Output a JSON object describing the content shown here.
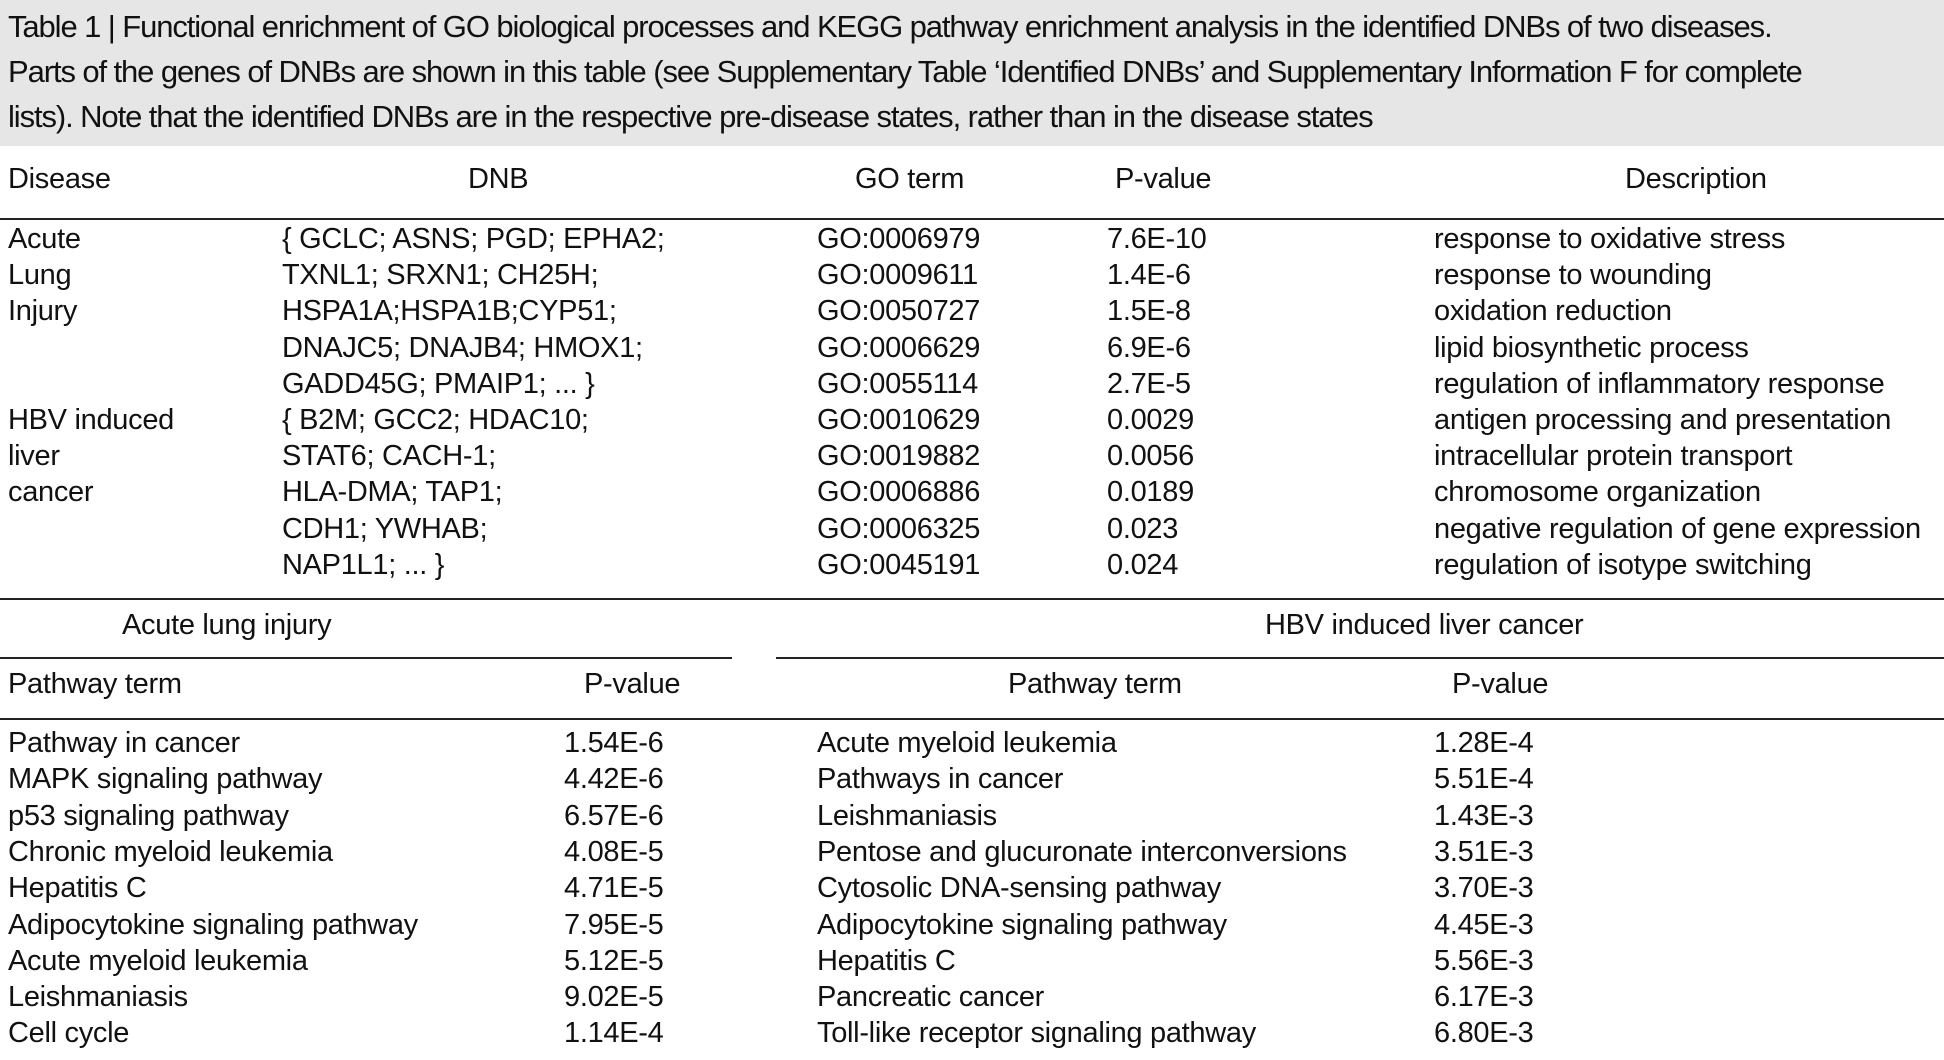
{
  "caption": {
    "lines": [
      "Table 1 | Functional enrichment of GO biological processes and KEGG pathway enrichment analysis in the identified DNBs of two diseases.",
      "Parts of the genes of DNBs are shown in this table (see Supplementary Table ‘Identified DNBs’ and Supplementary Information F for complete",
      "lists). Note that the identified DNBs are in the respective pre-disease states, rather than in the disease states"
    ]
  },
  "go_table": {
    "headers": {
      "disease": "Disease",
      "dnb": "DNB",
      "go_term": "GO term",
      "pvalue": "P-value",
      "description": "Description"
    },
    "disease_labels": [
      "Acute",
      "Lung",
      "Injury",
      "",
      "",
      "HBV induced",
      "liver",
      "cancer",
      "",
      ""
    ],
    "dnb_lines": [
      "{ GCLC; ASNS; PGD; EPHA2;",
      "TXNL1; SRXN1; CH25H;",
      "HSPA1A;HSPA1B;CYP51;",
      "DNAJC5; DNAJB4; HMOX1;",
      "GADD45G; PMAIP1; ... }",
      "{ B2M; GCC2; HDAC10;",
      "STAT6; CACH-1;",
      "HLA-DMA; TAP1;",
      "CDH1; YWHAB;",
      "NAP1L1; ... }"
    ],
    "go_terms": [
      "GO:0006979",
      "GO:0009611",
      "GO:0050727",
      "GO:0006629",
      "GO:0055114",
      "GO:0010629",
      "GO:0019882",
      "GO:0006886",
      "GO:0006325",
      "GO:0045191"
    ],
    "pvalues": [
      "7.6E-10",
      "1.4E-6",
      "1.5E-8",
      "6.9E-6",
      "2.7E-5",
      "0.0029",
      "0.0056",
      "0.0189",
      "0.023",
      "0.024"
    ],
    "descriptions": [
      "response to oxidative stress",
      "response to wounding",
      "oxidation reduction",
      "lipid biosynthetic process",
      "regulation of inflammatory response",
      "antigen processing and presentation",
      "intracellular protein transport",
      "chromosome organization",
      "negative regulation of gene expression",
      "regulation of isotype switching"
    ]
  },
  "pathway_tables": {
    "left": {
      "title": "Acute lung injury",
      "headers": {
        "term": "Pathway term",
        "pvalue": "P-value"
      },
      "rows": [
        {
          "term": "Pathway in cancer",
          "pvalue": "1.54E-6"
        },
        {
          "term": "MAPK signaling pathway",
          "pvalue": "4.42E-6"
        },
        {
          "term": "p53 signaling pathway",
          "pvalue": "6.57E-6"
        },
        {
          "term": "Chronic myeloid leukemia",
          "pvalue": "4.08E-5"
        },
        {
          "term": "Hepatitis C",
          "pvalue": "4.71E-5"
        },
        {
          "term": "Adipocytokine signaling pathway",
          "pvalue": "7.95E-5"
        },
        {
          "term": "Acute myeloid leukemia",
          "pvalue": "5.12E-5"
        },
        {
          "term": "Leishmaniasis",
          "pvalue": "9.02E-5"
        },
        {
          "term": "Cell cycle",
          "pvalue": "1.14E-4"
        }
      ]
    },
    "right": {
      "title": "HBV induced liver cancer",
      "headers": {
        "term": "Pathway term",
        "pvalue": "P-value"
      },
      "rows": [
        {
          "term": "Acute myeloid leukemia",
          "pvalue": "1.28E-4"
        },
        {
          "term": "Pathways in cancer",
          "pvalue": "5.51E-4"
        },
        {
          "term": "Leishmaniasis",
          "pvalue": "1.43E-3"
        },
        {
          "term": "Pentose and glucuronate interconversions",
          "pvalue": "3.51E-3"
        },
        {
          "term": "Cytosolic DNA-sensing pathway",
          "pvalue": "3.70E-3"
        },
        {
          "term": "Adipocytokine signaling pathway",
          "pvalue": "4.45E-3"
        },
        {
          "term": "Hepatitis C",
          "pvalue": "5.56E-3"
        },
        {
          "term": "Pancreatic cancer",
          "pvalue": "6.17E-3"
        },
        {
          "term": "Toll-like receptor signaling pathway",
          "pvalue": "6.80E-3"
        }
      ]
    }
  }
}
